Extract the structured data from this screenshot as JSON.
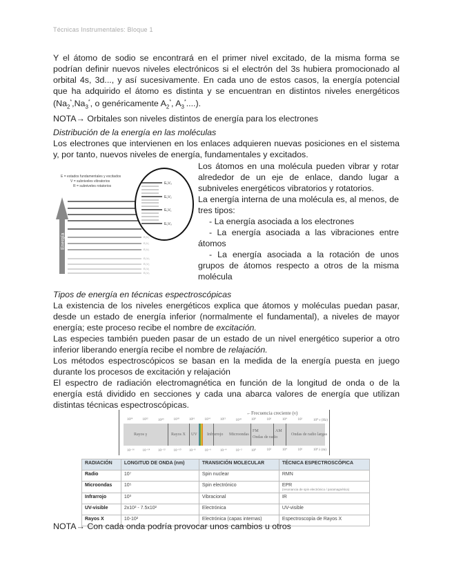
{
  "header": "Técnicas Instrumentales: Bloque 1",
  "intro": {
    "p1_a": "Y el átomo de sodio se encontrará en el primer nivel excitado, de la misma forma se podrían definir nuevos niveles electrónicos si el electrón del 3s hubiera promocionado al orbital 4s, 3d..., y así sucesivamente. En cada uno de estos casos, la energía potencial que ha adquirido el átomo es distinta y se encuentran en distintos niveles energéticos (Na",
    "na2_sub": "2",
    "star": "*",
    "na3": ",Na",
    "na3_sub": "3",
    "generic": ", o genéricamente A",
    "a2_sub": "2",
    "a3": ", A",
    "a3_sub": "3",
    "end": "....).",
    "nota": "NOTA→ Orbitales son niveles distintos de energía para los electrones"
  },
  "section1": {
    "title": "Distribución de la energía en las moléculas",
    "p1": "Los electrones que intervienen en los enlaces adquieren nuevas posiciones en el sistema y, por tanto, nuevos niveles de energía, fundamentales y excitados.",
    "p2": "Los átomos en una molécula pueden vibrar y rotar alrededor de un eje de enlace, dando lugar a subniveles energéticos vibratorios y rotatorios.",
    "p3": "La energía interna de una molécula es, al menos, de tres tipos:",
    "items": [
      "-   La energía asociada a los electrones",
      "-   La energía asociada a las vibraciones entre átomos",
      "-   La energía asociada a la rotación de unos grupos de átomos respecto a otros de la misma molécula"
    ],
    "figure": {
      "legend": [
        "E = estados fundamentales y excitados",
        "V = subniveles vibratorios",
        "R = subniveles rotatorios"
      ],
      "axis": "Energía",
      "circle_labels": [
        "E₀V₃",
        "E₀V₂",
        "E₀V₁",
        "E₀V₀"
      ],
      "side_labels": [
        "E₁V₂",
        "E₁V₁",
        "E₁V₀",
        "E₀V₃",
        "E₀V₂",
        "E₀V₁",
        "E₀V₀"
      ]
    }
  },
  "section2": {
    "title": "Tipos de energía en técnicas espectroscópicas",
    "p1_a": "La existencia de los niveles energéticos explica que átomos y moléculas puedan pasar, desde un estado de energía inferior (normalmente el fundamental), a niveles de mayor energía; este proceso recibe el nombre de ",
    "p1_em": "excitación.",
    "p2_a": "Las especies también pueden pasar de un estado de un nivel energético superior a otro inferior liberando energía recibe el nombre de ",
    "p2_em": "relajación.",
    "p3": "Los métodos espectroscópicos se basan en la medida de la energía puesta en juego durante los procesos de excitación y relajación",
    "p4": "El espectro de radiación electromagnética en función de la longitud de onda o de la energía está dividido en secciones y cada una abarca valores de energía que utilizan distintas técnicas espectroscópicas."
  },
  "spectrum": {
    "arrow_label": "←Frecuencia creciente (ν)",
    "top_ticks": [
      "10²⁴",
      "10²²",
      "10²⁰",
      "10¹⁸",
      "10¹⁶",
      "10¹⁴",
      "10¹²",
      "10¹⁰",
      "10⁸",
      "10⁶",
      "10⁴",
      "10²",
      "10⁰ ν (Hz)"
    ],
    "bottom_ticks": [
      "10⁻¹⁶",
      "10⁻¹⁴",
      "10⁻¹²",
      "10⁻¹⁰",
      "10⁻⁸",
      "10⁻⁶",
      "10⁻⁴",
      "10⁻²",
      "10⁰",
      "10²",
      "10⁴",
      "10⁶",
      "10⁸ λ (m)"
    ],
    "regions": [
      "Rayos γ",
      "Rayos X",
      "UV",
      "Infrarrojo",
      "Microondas",
      "FM",
      "Ondas de radio",
      "AM",
      "Ondas de radio largas"
    ]
  },
  "table": {
    "headers": [
      "RADIACIÓN",
      "LONGITUD DE ONDA (nm)",
      "TRANSICIÓN MOLECULAR",
      "TÉCNICA ESPECTROSCÓPICA"
    ],
    "rows": [
      [
        "Radio",
        "10⁷",
        "Spin nuclear",
        "RMN",
        ""
      ],
      [
        "Microondas",
        "10⁵",
        "Spin electrónico",
        "EPR",
        "(resonancia de spin electrónico / paramagnética)"
      ],
      [
        "Infrarrojo",
        "10³",
        "Vibracional",
        "IR",
        ""
      ],
      [
        "UV-visible",
        "2x10² - 7.5x10²",
        "Electrónica",
        "UV-visible",
        ""
      ],
      [
        "Rayos X",
        "10-10²",
        "Electrónica (capas internas)",
        "Espectroscopía de Rayos X",
        ""
      ]
    ]
  },
  "footer_note": "NOTA→ Con cada onda podría provocar unos cambios u otros"
}
